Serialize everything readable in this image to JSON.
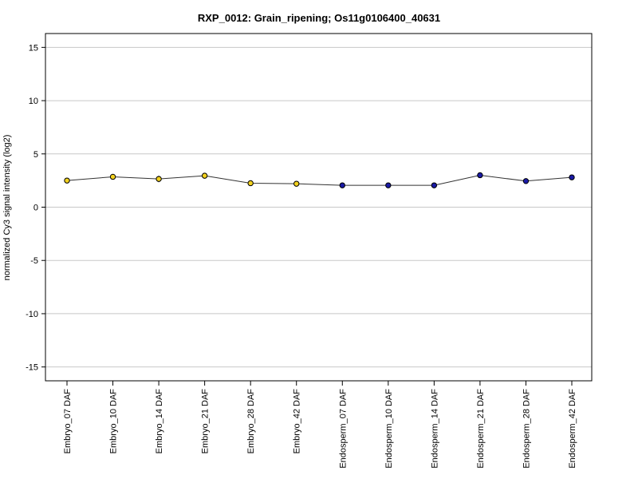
{
  "chart_data": {
    "type": "line",
    "title": "RXP_0012: Grain_ripening; Os11g0106400_40631",
    "xlabel": "",
    "ylabel": "normalized Cy3 signal intensity (log2)",
    "ylim": [
      -16.3,
      16.3
    ],
    "yticks": [
      -15,
      -10,
      -5,
      0,
      5,
      10,
      15
    ],
    "grid": true,
    "categories": [
      "Embryo_07 DAF",
      "Embryo_10 DAF",
      "Embryo_14 DAF",
      "Embryo_21 DAF",
      "Embryo_28 DAF",
      "Embryo_42 DAF",
      "Endosperm_07 DAF",
      "Endosperm_10 DAF",
      "Endosperm_14 DAF",
      "Endosperm_21 DAF",
      "Endosperm_28 DAF",
      "Endosperm_42 DAF"
    ],
    "values": [
      2.5,
      2.85,
      2.65,
      2.95,
      2.25,
      2.2,
      2.05,
      2.05,
      2.05,
      3.0,
      2.45,
      2.8
    ],
    "errors": [
      0.15,
      0.12,
      0.3,
      0.12,
      0.1,
      0.1,
      0.25,
      0.1,
      0.1,
      0.1,
      0.1,
      0.1
    ],
    "point_colors": [
      "#f2d11e",
      "#f2d11e",
      "#f2d11e",
      "#f2d11e",
      "#f2d11e",
      "#f2d11e",
      "#1a1aa6",
      "#1a1aa6",
      "#1a1aa6",
      "#1a1aa6",
      "#1a1aa6",
      "#1a1aa6"
    ],
    "line_color": "#333333",
    "grid_color": "#c8c8c8"
  }
}
